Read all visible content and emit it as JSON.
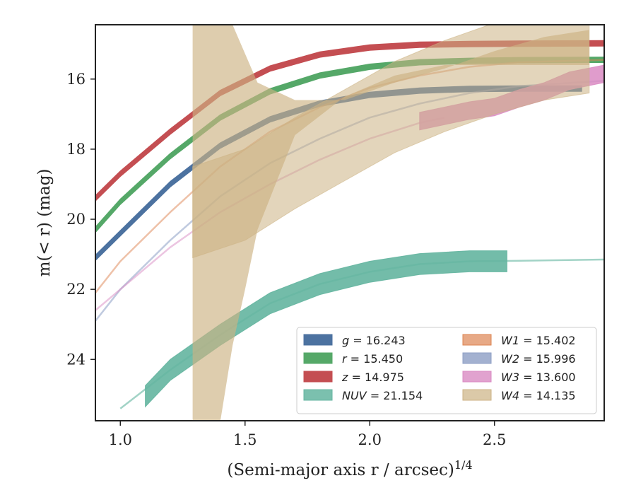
{
  "chart_data": {
    "type": "line",
    "title": "",
    "xlabel": "(Semi-major axis r / arcsec)",
    "xlabel_superscript": "1/4",
    "ylabel": "m(< r) (mag)",
    "xlim": [
      0.9,
      2.94
    ],
    "ylim": [
      25.75,
      14.45
    ],
    "y_inverted": true,
    "grid": false,
    "legend_position": "lower-right",
    "x_ticks": [
      1.0,
      1.5,
      2.0,
      2.5
    ],
    "x_tick_labels": [
      "1.0",
      "1.5",
      "2.0",
      "2.5"
    ],
    "y_ticks": [
      16,
      18,
      20,
      22,
      24
    ],
    "y_tick_labels": [
      "16",
      "18",
      "20",
      "22",
      "24"
    ],
    "series": [
      {
        "name": "g = 16.243",
        "label_var": "g",
        "label_val": "= 16.243",
        "color": "#4c72a0",
        "opacity": 1,
        "x": [
          0.9,
          1.0,
          1.2,
          1.4,
          1.6,
          1.8,
          2.0,
          2.2,
          2.4,
          2.6,
          2.85
        ],
        "y": [
          21.1,
          20.4,
          19.0,
          17.9,
          17.15,
          16.7,
          16.45,
          16.33,
          16.28,
          16.27,
          16.27
        ],
        "band": 0.08
      },
      {
        "name": "r = 15.450",
        "label_var": "r",
        "label_val": "= 15.450",
        "color": "#55a868",
        "opacity": 1,
        "x": [
          0.9,
          1.0,
          1.2,
          1.4,
          1.6,
          1.8,
          2.0,
          2.2,
          2.4,
          2.6,
          2.94
        ],
        "y": [
          20.3,
          19.5,
          18.2,
          17.1,
          16.35,
          15.9,
          15.65,
          15.52,
          15.48,
          15.46,
          15.45
        ],
        "band": 0.08
      },
      {
        "name": "z = 14.975",
        "label_var": "z",
        "label_val": "= 14.975",
        "color": "#c44e52",
        "opacity": 1,
        "x": [
          0.9,
          1.0,
          1.2,
          1.4,
          1.6,
          1.8,
          2.0,
          2.2,
          2.4,
          2.6,
          2.94
        ],
        "y": [
          19.4,
          18.7,
          17.5,
          16.4,
          15.7,
          15.3,
          15.1,
          15.02,
          15.0,
          14.99,
          14.98
        ],
        "band": 0.08
      },
      {
        "name": "NUV = 21.154",
        "label_var": "NUV",
        "label_val": "= 21.154",
        "color": "#64b5a0",
        "opacity": 0.6,
        "x": [
          1.0,
          1.2,
          1.4,
          1.6,
          1.8,
          2.0,
          2.2,
          2.4,
          2.55,
          2.94
        ],
        "y": [
          25.4,
          24.3,
          23.3,
          22.4,
          21.85,
          21.5,
          21.28,
          21.2,
          21.19,
          21.15
        ]
      },
      {
        "name": "NUV band",
        "label_var": "",
        "label_val": "",
        "color": "#64b5a0",
        "opacity": 0.9,
        "x": [
          1.1,
          1.2,
          1.4,
          1.6,
          1.8,
          2.0,
          2.2,
          2.4,
          2.55
        ],
        "y": [
          25.05,
          24.3,
          23.3,
          22.4,
          21.85,
          21.5,
          21.28,
          21.2,
          21.2
        ],
        "band": 0.3
      },
      {
        "name": "W1 = 15.402",
        "label_var": "W1",
        "label_val": "= 15.402",
        "color": "#dd8452",
        "opacity": 0.5,
        "x": [
          0.9,
          1.0,
          1.2,
          1.4,
          1.6,
          1.8,
          2.0,
          2.2,
          2.4,
          2.6,
          2.94
        ],
        "y": [
          22.1,
          21.2,
          19.8,
          18.5,
          17.5,
          16.8,
          16.25,
          15.9,
          15.65,
          15.52,
          15.45
        ]
      },
      {
        "name": "W2 = 15.996",
        "label_var": "W2",
        "label_val": "= 15.996",
        "color": "#8c9ec4",
        "opacity": 0.55,
        "x": [
          0.9,
          1.0,
          1.2,
          1.4,
          1.6,
          1.8,
          2.0,
          2.2,
          2.4,
          2.6,
          2.94
        ],
        "y": [
          22.9,
          22.0,
          20.6,
          19.35,
          18.4,
          17.7,
          17.1,
          16.7,
          16.4,
          16.2,
          16.05
        ]
      },
      {
        "name": "W3 = 13.600",
        "label_var": "W3",
        "label_val": "= 13.600",
        "color": "#da8bc3",
        "opacity": 0.5,
        "x": [
          0.9,
          1.0,
          1.2,
          1.4,
          1.6,
          1.8,
          2.0,
          2.2,
          2.3
        ],
        "y": [
          22.6,
          22.0,
          20.8,
          19.8,
          19.0,
          18.3,
          17.7,
          17.25,
          17.1
        ]
      },
      {
        "name": "W3 band",
        "label_var": "",
        "label_val": "",
        "color": "#da8bc3",
        "opacity": 0.85,
        "x": [
          2.2,
          2.3,
          2.4,
          2.5,
          2.6,
          2.7,
          2.8,
          2.94
        ],
        "y": [
          17.2,
          17.05,
          16.9,
          16.8,
          16.55,
          16.35,
          16.05,
          15.85
        ],
        "band": 0.25
      },
      {
        "name": "W4 = 14.135",
        "label_var": "W4",
        "label_val": "= 14.135",
        "color": "#ccb283",
        "opacity": 0.65,
        "band_upper_x": [
          1.29,
          1.29,
          1.45,
          1.55,
          1.7,
          1.9,
          2.1,
          2.3,
          2.5,
          2.7,
          2.88
        ],
        "band_upper_y": [
          25.8,
          14.45,
          14.45,
          16.1,
          16.6,
          16.6,
          16.1,
          15.7,
          15.2,
          14.8,
          14.6
        ],
        "band_lower_x": [
          2.88,
          2.7,
          2.5,
          2.3,
          2.1,
          1.9,
          1.7,
          1.55,
          1.5,
          1.45,
          1.4,
          1.29
        ],
        "band_lower_y": [
          15.6,
          15.6,
          15.6,
          15.6,
          15.9,
          16.5,
          17.6,
          20.3,
          22.0,
          23.6,
          25.8,
          25.8
        ]
      },
      {
        "name": "W4 center",
        "label_var": "",
        "label_val": "",
        "color": "#ccb283",
        "opacity": 0.55,
        "x": [
          1.29,
          1.5,
          1.7,
          1.9,
          2.1,
          2.3,
          2.5,
          2.7,
          2.88
        ],
        "y": [
          19.8,
          19.3,
          18.4,
          17.6,
          16.8,
          16.2,
          15.7,
          15.3,
          15.1
        ],
        "band": 1.3
      }
    ],
    "legend": [
      {
        "var": "g",
        "val": "= 16.243",
        "color": "#4c72a0",
        "opacity": 1
      },
      {
        "var": "r",
        "val": "= 15.450",
        "color": "#55a868",
        "opacity": 1
      },
      {
        "var": "z",
        "val": "= 14.975",
        "color": "#c44e52",
        "opacity": 1
      },
      {
        "var": "NUV",
        "val": "= 21.154",
        "color": "#64b5a0",
        "opacity": 0.85
      },
      {
        "var": "W1",
        "val": "= 15.402",
        "color": "#dd8452",
        "opacity": 0.7
      },
      {
        "var": "W2",
        "val": "= 15.996",
        "color": "#8c9ec4",
        "opacity": 0.8
      },
      {
        "var": "W3",
        "val": "= 13.600",
        "color": "#da8bc3",
        "opacity": 0.8
      },
      {
        "var": "W4",
        "val": "= 14.135",
        "color": "#ccb283",
        "opacity": 0.7
      }
    ]
  }
}
